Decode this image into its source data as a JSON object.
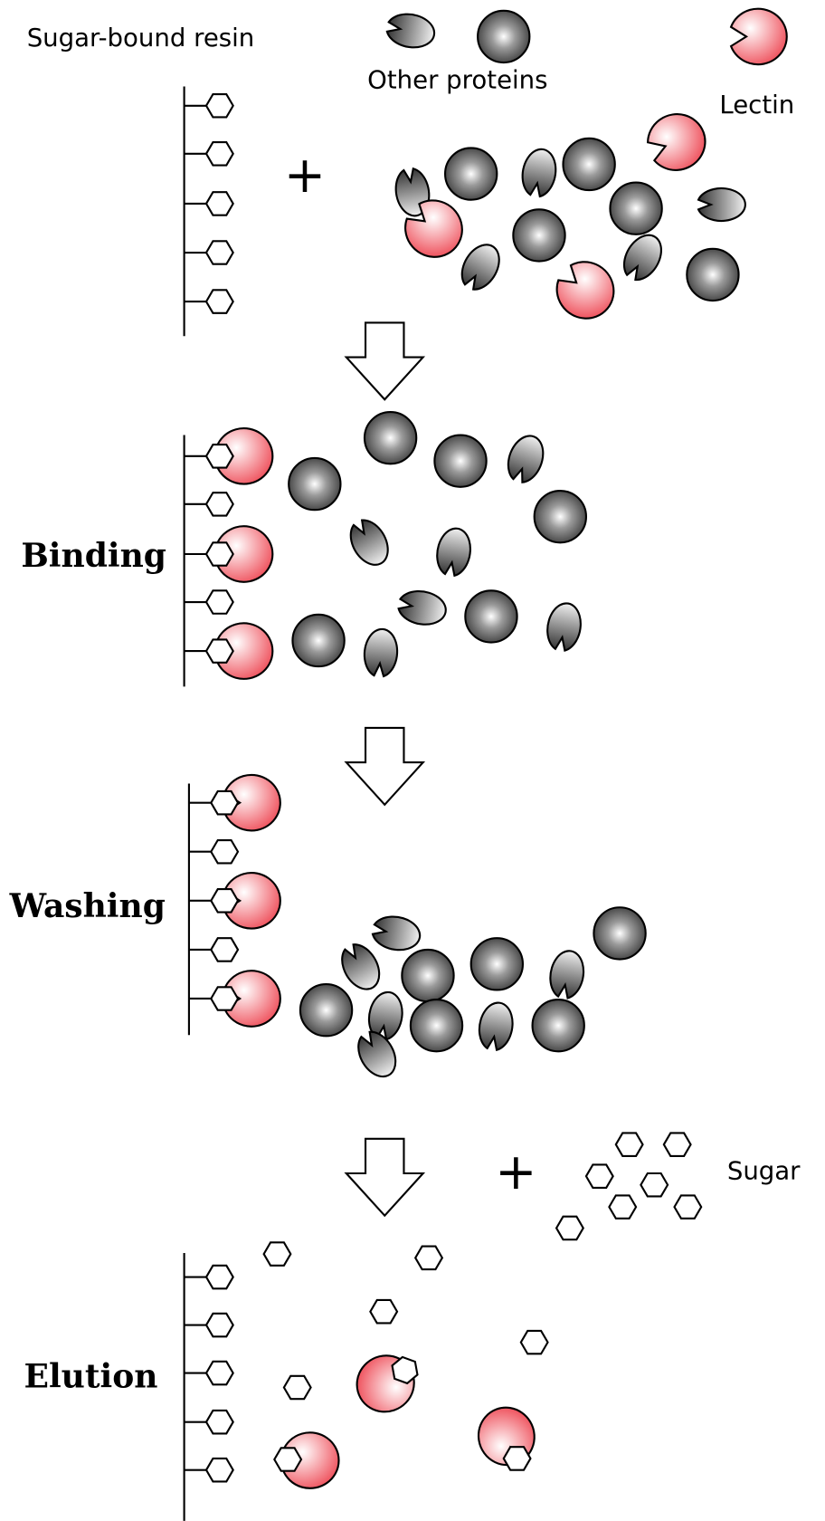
{
  "labels": {
    "sugar_bound_resin": "Sugar-bound resin",
    "other_proteins": "Other proteins",
    "lectin": "Lectin",
    "sugar": "Sugar",
    "plus": "+"
  },
  "steps": {
    "binding": "Binding",
    "washing": "Washing",
    "elution": "Elution"
  }
}
